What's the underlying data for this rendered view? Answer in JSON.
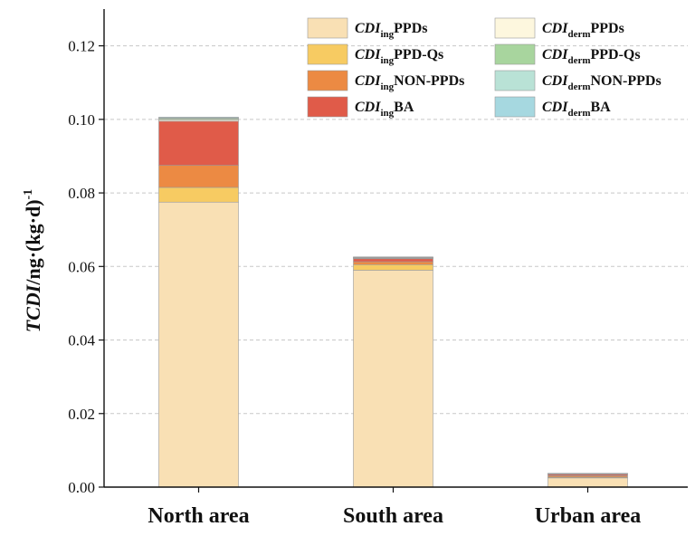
{
  "chart_data": {
    "type": "bar",
    "stacked": true,
    "categories": [
      "North area",
      "South area",
      "Urban area"
    ],
    "ylim": [
      0,
      0.13
    ],
    "yticks": [
      "0.00",
      "0.02",
      "0.04",
      "0.06",
      "0.08",
      "0.10",
      "0.12"
    ],
    "ytick_values": [
      0,
      0.02,
      0.04,
      0.06,
      0.08,
      0.1,
      0.12
    ],
    "ylabel": {
      "italic": "TCDI",
      "main": "/ng·(kg·d)",
      "sup": "-1"
    },
    "grid": "horizontal dashed",
    "legend_position": "top-right",
    "series": [
      {
        "name_base": "CDI",
        "name_sub": "ing",
        "name_suffix": "PPDs",
        "color": "#F9E0B4",
        "values": [
          0.0775,
          0.059,
          0.0025
        ]
      },
      {
        "name_base": "CDI",
        "name_sub": "ing",
        "name_suffix": "PPD-Qs",
        "color": "#F7CB62",
        "values": [
          0.004,
          0.0015,
          0.0002
        ]
      },
      {
        "name_base": "CDI",
        "name_sub": "ing",
        "name_suffix": "NON-PPDs",
        "color": "#EC8A43",
        "values": [
          0.006,
          0.0008,
          0.0004
        ]
      },
      {
        "name_base": "CDI",
        "name_sub": "ing",
        "name_suffix": "BA",
        "color": "#E05B49",
        "values": [
          0.012,
          0.0008,
          0.0004
        ]
      },
      {
        "name_base": "CDI",
        "name_sub": "derm",
        "name_suffix": "PPDs",
        "color": "#FDF7DE",
        "values": [
          0.0004,
          0.0002,
          0.0001
        ]
      },
      {
        "name_base": "CDI",
        "name_sub": "derm",
        "name_suffix": "PPD-Qs",
        "color": "#A8D59E",
        "values": [
          0.0003,
          0.0001,
          5e-05
        ]
      },
      {
        "name_base": "CDI",
        "name_sub": "derm",
        "name_suffix": "NON-PPDs",
        "color": "#B9E2D6",
        "values": [
          0.0002,
          0.0001,
          5e-05
        ]
      },
      {
        "name_base": "CDI",
        "name_sub": "derm",
        "name_suffix": "BA",
        "color": "#A6D8E0",
        "values": [
          0.0002,
          0.0001,
          5e-05
        ]
      }
    ]
  }
}
